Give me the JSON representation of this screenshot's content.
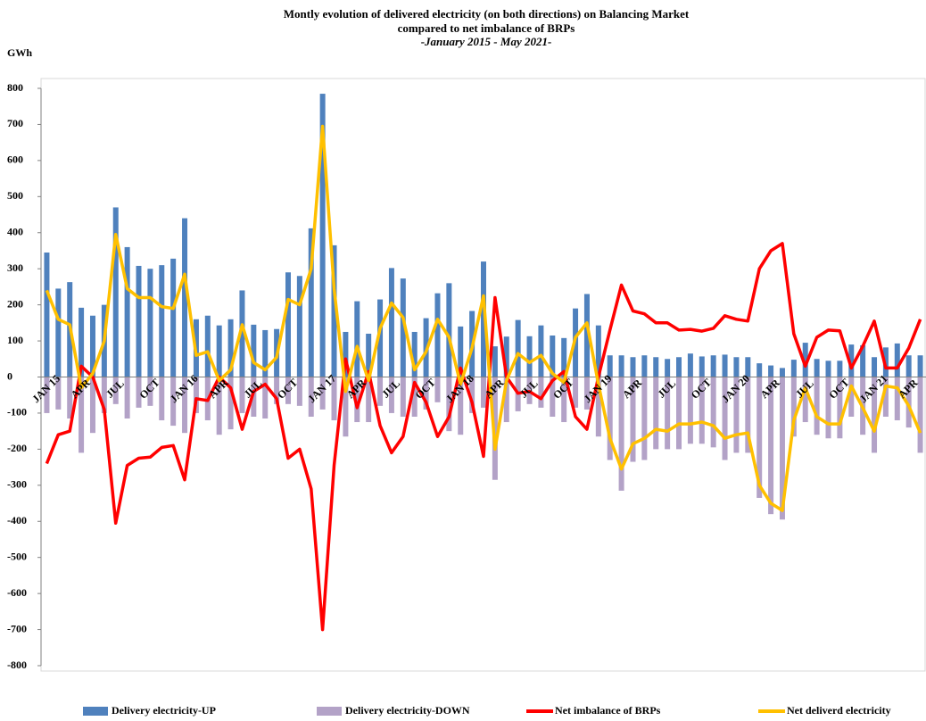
{
  "chart_data": {
    "type": "bar",
    "title": [
      "Montly evolution of delivered electricity (on both directions) on Balancing Market",
      "compared to net imbalance  of BRPs"
    ],
    "subtitle": "-January 2015 - May 2021-",
    "y_label": "GWh",
    "categories": [
      "JAN 15",
      null,
      null,
      "APR",
      null,
      null,
      "JUL",
      null,
      null,
      "OCT",
      null,
      null,
      "JAN 16",
      null,
      null,
      "APR",
      null,
      null,
      "JUL",
      null,
      null,
      "OCT",
      null,
      null,
      "JAN 17",
      null,
      null,
      "APR",
      null,
      null,
      "JUL",
      null,
      null,
      "OCT",
      null,
      null,
      "JAN 18",
      null,
      null,
      "APR",
      null,
      null,
      "JUL",
      null,
      null,
      "OCT",
      null,
      null,
      "JAN 19",
      null,
      null,
      "APR",
      null,
      null,
      "JUL",
      null,
      null,
      "OCT",
      null,
      null,
      "JAN 20",
      null,
      null,
      "APR",
      null,
      null,
      "JUL",
      null,
      null,
      "OCT",
      null,
      null,
      "JAN 21",
      null,
      null,
      "APR",
      null
    ],
    "ylim": [
      -800,
      800
    ],
    "yticks": [
      -800,
      -700,
      -600,
      -500,
      -400,
      -300,
      -200,
      -100,
      0,
      100,
      200,
      300,
      400,
      500,
      600,
      700,
      800
    ],
    "grid": false,
    "series": [
      {
        "name": "Delivery electricity-UP",
        "type": "bar",
        "color": "#4f81bd",
        "values": [
          345,
          245,
          263,
          192,
          170,
          200,
          470,
          360,
          308,
          300,
          310,
          328,
          440,
          160,
          170,
          143,
          160,
          240,
          145,
          130,
          133,
          290,
          280,
          412,
          785,
          365,
          125,
          210,
          120,
          215,
          302,
          273,
          125,
          163,
          232,
          260,
          140,
          183,
          320,
          85,
          112,
          158,
          113,
          143,
          115,
          108,
          190,
          230,
          143,
          60,
          60,
          55,
          60,
          55,
          50,
          55,
          65,
          57,
          60,
          62,
          55,
          55,
          38,
          32,
          25,
          48,
          95,
          50,
          45,
          45,
          90,
          88,
          55,
          82,
          93,
          60,
          60
        ]
      },
      {
        "name": "Delivery electricity-DOWN",
        "type": "bar",
        "color": "#b3a2c7",
        "values": [
          -100,
          -90,
          -115,
          -210,
          -155,
          -100,
          -75,
          -115,
          -85,
          -80,
          -120,
          -135,
          -155,
          -100,
          -120,
          -160,
          -145,
          -100,
          -110,
          -115,
          -75,
          -75,
          -80,
          -110,
          -90,
          -120,
          -165,
          -125,
          -125,
          -80,
          -100,
          -110,
          -110,
          -90,
          -70,
          -150,
          -160,
          -100,
          -85,
          -285,
          -125,
          -95,
          -75,
          -85,
          -110,
          -125,
          -85,
          -90,
          -165,
          -230,
          -315,
          -235,
          -230,
          -200,
          -200,
          -200,
          -185,
          -185,
          -195,
          -230,
          -210,
          -210,
          -335,
          -380,
          -395,
          -165,
          -125,
          -160,
          -170,
          -170,
          -110,
          -160,
          -210,
          -110,
          -120,
          -140,
          -210
        ]
      },
      {
        "name": "Net imbalance of BRPs",
        "type": "line",
        "color": "#ff0000",
        "values": [
          -240,
          -160,
          -150,
          30,
          0,
          -90,
          -405,
          -245,
          -225,
          -222,
          -195,
          -190,
          -285,
          -60,
          -65,
          0,
          -30,
          -145,
          -40,
          -20,
          -60,
          -225,
          -200,
          -310,
          -700,
          -245,
          50,
          -85,
          15,
          -135,
          -210,
          -165,
          -15,
          -70,
          -165,
          -110,
          25,
          -70,
          -220,
          220,
          0,
          -45,
          -40,
          -60,
          -10,
          15,
          -110,
          -145,
          0,
          130,
          255,
          183,
          175,
          150,
          150,
          130,
          132,
          127,
          135,
          170,
          160,
          155,
          300,
          350,
          370,
          120,
          30,
          110,
          130,
          128,
          25,
          85,
          155,
          25,
          25,
          80,
          160
        ]
      },
      {
        "name": "Net deliverd electricity",
        "type": "line",
        "color": "#ffc000",
        "values": [
          240,
          160,
          145,
          -30,
          10,
          100,
          395,
          245,
          220,
          220,
          195,
          190,
          285,
          60,
          70,
          -10,
          20,
          145,
          40,
          20,
          55,
          215,
          200,
          300,
          695,
          245,
          -40,
          85,
          -10,
          135,
          205,
          165,
          20,
          70,
          160,
          110,
          -20,
          80,
          225,
          -200,
          -10,
          65,
          40,
          60,
          10,
          -15,
          110,
          150,
          -20,
          -170,
          -255,
          -185,
          -170,
          -145,
          -150,
          -130,
          -130,
          -125,
          -135,
          -170,
          -160,
          -155,
          -300,
          -350,
          -370,
          -120,
          -30,
          -110,
          -130,
          -130,
          -25,
          -85,
          -150,
          -25,
          -30,
          -80,
          -155
        ]
      }
    ]
  }
}
